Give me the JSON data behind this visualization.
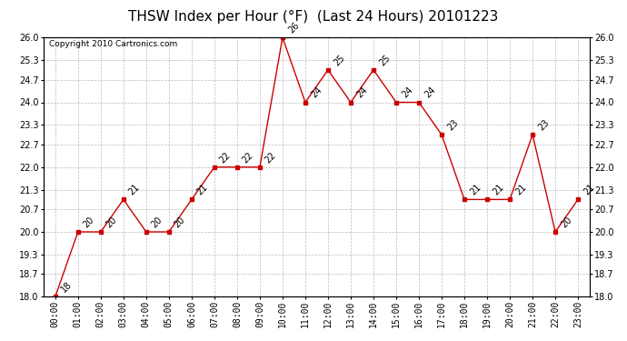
{
  "title": "THSW Index per Hour (°F)  (Last 24 Hours) 20101223",
  "copyright": "Copyright 2010 Cartronics.com",
  "hours": [
    "00:00",
    "01:00",
    "02:00",
    "03:00",
    "04:00",
    "05:00",
    "06:00",
    "07:00",
    "08:00",
    "09:00",
    "10:00",
    "11:00",
    "12:00",
    "13:00",
    "14:00",
    "15:00",
    "16:00",
    "17:00",
    "18:00",
    "19:00",
    "20:00",
    "21:00",
    "22:00",
    "23:00"
  ],
  "values": [
    18,
    20,
    20,
    21,
    20,
    20,
    21,
    22,
    22,
    22,
    26,
    24,
    25,
    24,
    25,
    24,
    24,
    23,
    21,
    21,
    21,
    23,
    20,
    21
  ],
  "ylim_min": 18.0,
  "ylim_max": 26.0,
  "yticks": [
    18.0,
    18.7,
    19.3,
    20.0,
    20.7,
    21.3,
    22.0,
    22.7,
    23.3,
    24.0,
    24.7,
    25.3,
    26.0
  ],
  "line_color": "#cc0000",
  "marker_color": "#cc0000",
  "bg_color": "#ffffff",
  "grid_color": "#bbbbbb",
  "title_fontsize": 11,
  "label_fontsize": 7,
  "tick_fontsize": 7,
  "copyright_fontsize": 6.5
}
